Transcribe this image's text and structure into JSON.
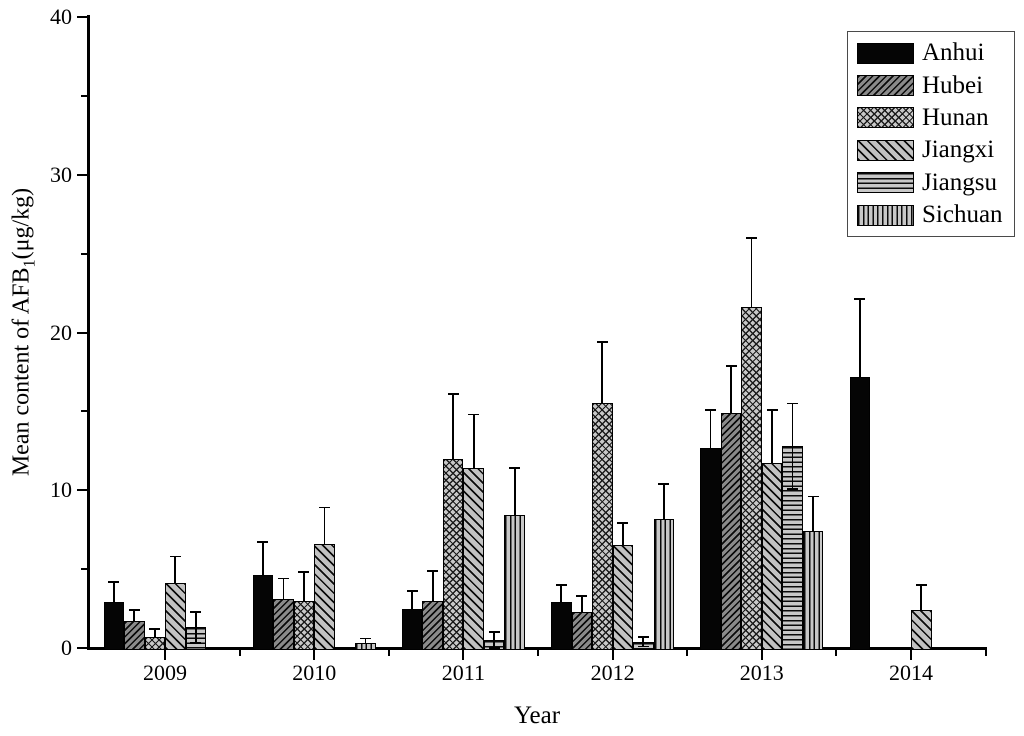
{
  "figure": {
    "background": "#ffffff",
    "axis_color": "#000000",
    "bar_outline": "#000000"
  },
  "chart_data": {
    "type": "bar",
    "title": "",
    "xlabel": "Year",
    "ylabel": {
      "prefix": "Mean content of AFB",
      "sub": "1",
      "suffix": "(μg/kg)"
    },
    "ylim": [
      0,
      40
    ],
    "yticks_major": [
      0,
      10,
      20,
      30,
      40
    ],
    "yticks_minor": [
      5,
      15,
      25,
      35
    ],
    "categories": [
      "2009",
      "2010",
      "2011",
      "2012",
      "2013",
      "2014"
    ],
    "grid": false,
    "legend_position": "top-right",
    "error_bars": "shown, black caps",
    "series": [
      {
        "name": "Anhui",
        "pattern": "solid",
        "fill": "#050505",
        "values": [
          2.9,
          4.6,
          2.5,
          2.9,
          12.7,
          17.2
        ],
        "errors": [
          1.3,
          2.1,
          1.1,
          1.1,
          2.4,
          4.9
        ],
        "error_two_sided": false
      },
      {
        "name": "Hubei",
        "pattern": "diag-up",
        "fill": "#8a8a8a",
        "values": [
          1.7,
          3.1,
          3.0,
          2.3,
          14.9,
          0
        ],
        "errors": [
          0.7,
          1.3,
          1.9,
          1.0,
          3.0,
          0
        ],
        "error_two_sided": false
      },
      {
        "name": "Hunan",
        "pattern": "crosshatch",
        "fill": "#c8c8c8",
        "values": [
          0.7,
          3.0,
          12.0,
          15.5,
          21.6,
          0
        ],
        "errors": [
          0.5,
          1.8,
          4.1,
          3.9,
          4.4,
          0
        ],
        "error_two_sided": false
      },
      {
        "name": "Jiangxi",
        "pattern": "diag-down",
        "fill": "#c2c2c2",
        "values": [
          4.1,
          6.6,
          11.4,
          6.5,
          11.7,
          2.4
        ],
        "errors": [
          1.7,
          2.3,
          3.4,
          1.4,
          3.4,
          1.6
        ],
        "error_two_sided": false
      },
      {
        "name": "Jiangsu",
        "pattern": "horizontal",
        "fill": "#c8c8c8",
        "values": [
          1.3,
          0,
          0.5,
          0.4,
          12.8,
          0
        ],
        "errors": [
          1.0,
          0,
          0.5,
          0.3,
          2.7,
          0
        ],
        "error_two_sided": true
      },
      {
        "name": "Sichuan",
        "pattern": "vertical",
        "fill": "#c8c8c8",
        "values": [
          0,
          0.3,
          8.4,
          8.2,
          7.4,
          0
        ],
        "errors": [
          0,
          0.3,
          3.0,
          2.2,
          2.2,
          0
        ],
        "error_two_sided": false
      }
    ]
  }
}
